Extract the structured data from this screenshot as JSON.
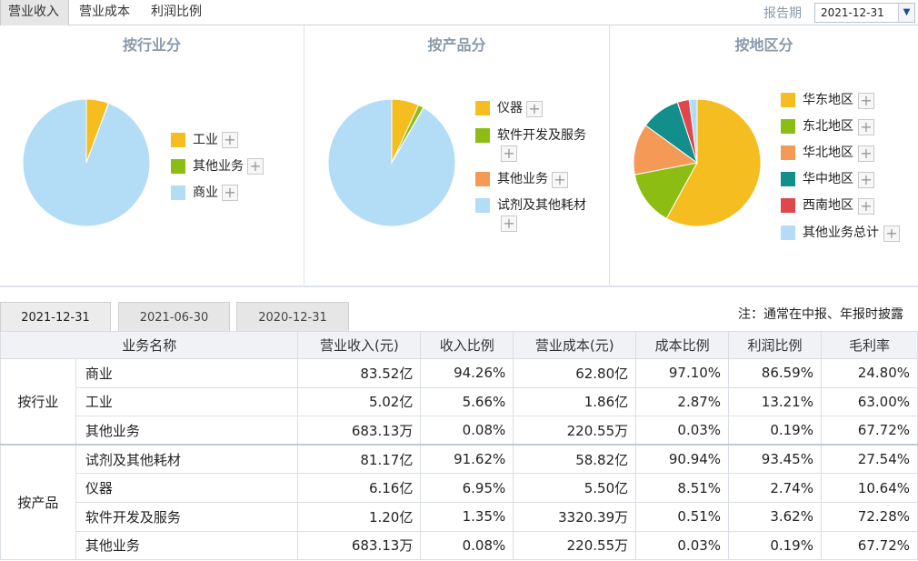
{
  "top_tabs": [
    "营业收入",
    "营业成本",
    "利润比例"
  ],
  "report_period": {
    "label": "报告期",
    "value": "2021-12-31"
  },
  "panels": [
    {
      "title": "按行业分",
      "legend": [
        {
          "label": "工业",
          "color": "#f5bd1f"
        },
        {
          "label": "其他业务",
          "color": "#8cbd12"
        },
        {
          "label": "商业",
          "color": "#b3dcf6"
        }
      ]
    },
    {
      "title": "按产品分",
      "legend": [
        {
          "label": "仪器",
          "color": "#f5bd1f"
        },
        {
          "label": "软件开发及服务",
          "color": "#8cbd12"
        },
        {
          "label": "其他业务",
          "color": "#f59a56"
        },
        {
          "label": "试剂及其他耗材",
          "color": "#b3dcf6"
        }
      ]
    },
    {
      "title": "按地区分",
      "legend": [
        {
          "label": "华东地区",
          "color": "#f5bd1f"
        },
        {
          "label": "东北地区",
          "color": "#8cbd12"
        },
        {
          "label": "华北地区",
          "color": "#f59a56"
        },
        {
          "label": "华中地区",
          "color": "#128f8b"
        },
        {
          "label": "西南地区",
          "color": "#e0474c"
        },
        {
          "label": "其他业务总计",
          "color": "#b3dcf6"
        }
      ]
    }
  ],
  "chart_data": [
    {
      "type": "pie",
      "title": "按行业分",
      "labels": [
        "工业",
        "其他业务",
        "商业"
      ],
      "values": [
        5.66,
        0.08,
        94.26
      ],
      "colors": [
        "#f5bd1f",
        "#8cbd12",
        "#b3dcf6"
      ]
    },
    {
      "type": "pie",
      "title": "按产品分",
      "labels": [
        "仪器",
        "软件开发及服务",
        "其他业务",
        "试剂及其他耗材"
      ],
      "values": [
        6.95,
        1.35,
        0.08,
        91.62
      ],
      "colors": [
        "#f5bd1f",
        "#8cbd12",
        "#f59a56",
        "#b3dcf6"
      ]
    },
    {
      "type": "pie",
      "title": "按地区分",
      "labels": [
        "华东地区",
        "东北地区",
        "华北地区",
        "华中地区",
        "西南地区",
        "其他业务总计"
      ],
      "values": [
        58,
        14,
        13,
        10,
        3,
        2
      ],
      "colors": [
        "#f5bd1f",
        "#8cbd12",
        "#f59a56",
        "#128f8b",
        "#e0474c",
        "#b3dcf6"
      ]
    }
  ],
  "date_tabs": [
    "2021-12-31",
    "2021-06-30",
    "2020-12-31"
  ],
  "note": "注：通常在中报、年报时披露",
  "table": {
    "headers": [
      "业务名称",
      "营业收入(元)",
      "收入比例",
      "营业成本(元)",
      "成本比例",
      "利润比例",
      "毛利率"
    ],
    "groups": [
      {
        "name": "按行业",
        "rows": [
          [
            "商业",
            "83.52亿",
            "94.26%",
            "62.80亿",
            "97.10%",
            "86.59%",
            "24.80%"
          ],
          [
            "工业",
            "5.02亿",
            "5.66%",
            "1.86亿",
            "2.87%",
            "13.21%",
            "63.00%"
          ],
          [
            "其他业务",
            "683.13万",
            "0.08%",
            "220.55万",
            "0.03%",
            "0.19%",
            "67.72%"
          ]
        ]
      },
      {
        "name": "按产品",
        "rows": [
          [
            "试剂及其他耗材",
            "81.17亿",
            "91.62%",
            "58.82亿",
            "90.94%",
            "93.45%",
            "27.54%"
          ],
          [
            "仪器",
            "6.16亿",
            "6.95%",
            "5.50亿",
            "8.51%",
            "2.74%",
            "10.64%"
          ],
          [
            "软件开发及服务",
            "1.20亿",
            "1.35%",
            "3320.39万",
            "0.51%",
            "3.62%",
            "72.28%"
          ],
          [
            "其他业务",
            "683.13万",
            "0.08%",
            "220.55万",
            "0.03%",
            "0.19%",
            "67.72%"
          ]
        ]
      }
    ]
  }
}
